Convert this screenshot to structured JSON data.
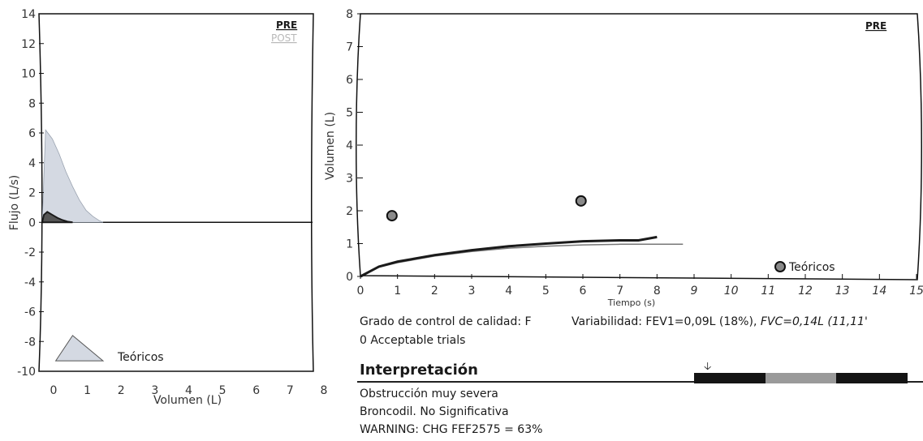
{
  "colors": {
    "pre": "#1a1a1a",
    "post": "#b8b8b8",
    "predicted_fill": "#d4d9e2",
    "axis": "#111111",
    "tick_text": "#333333",
    "predicted_marker": "#8a8a8a",
    "scale_dark": "#141414",
    "scale_light": "#9a9a9a"
  },
  "chart_data": [
    {
      "type": "area",
      "xlabel": "Volumen (L)",
      "ylabel": "Flujo (L/s)",
      "xlim": [
        0,
        8
      ],
      "ylim": [
        -10,
        14
      ],
      "xticks": [
        0,
        1,
        2,
        3,
        4,
        5,
        6,
        7,
        8
      ],
      "yticks": [
        14,
        12,
        10,
        8,
        6,
        4,
        2,
        0,
        -2,
        -4,
        -6,
        -8,
        -10
      ],
      "legend": [
        {
          "label": "PRE",
          "color": "#1a1a1a"
        },
        {
          "label": "POST",
          "color": "#b8b8b8"
        }
      ],
      "series": [
        {
          "name": "Teóricos",
          "x": [
            0.0,
            0.1,
            0.3,
            0.5,
            0.7,
            0.9,
            1.1,
            1.3,
            1.5,
            1.7,
            1.8
          ],
          "y": [
            0.0,
            6.2,
            5.6,
            4.6,
            3.4,
            2.4,
            1.5,
            0.8,
            0.4,
            0.1,
            0.0
          ]
        },
        {
          "name": "PRE",
          "x": [
            0.0,
            0.05,
            0.15,
            0.3,
            0.45,
            0.6,
            0.75,
            0.9
          ],
          "y": [
            0.0,
            0.5,
            0.7,
            0.5,
            0.3,
            0.15,
            0.05,
            0.0
          ]
        },
        {
          "name": "Teóricos inspiratoria",
          "x": [
            0.4,
            0.9,
            1.8
          ],
          "y": [
            -9.3,
            -7.6,
            -9.3
          ]
        }
      ],
      "annotations": [
        "Teóricos"
      ]
    },
    {
      "type": "line",
      "xlabel": "Tiempo (s)",
      "ylabel": "Volumen (L)",
      "xlim": [
        0,
        15
      ],
      "ylim": [
        0,
        8
      ],
      "xticks": [
        0,
        1,
        2,
        3,
        4,
        5,
        6,
        7,
        8,
        9,
        10,
        11,
        12,
        13,
        14,
        15
      ],
      "yticks": [
        0,
        1,
        2,
        3,
        4,
        5,
        6,
        7,
        8
      ],
      "legend": [
        {
          "label": "PRE",
          "color": "#1a1a1a"
        }
      ],
      "series": [
        {
          "name": "PRE",
          "x": [
            0,
            0.5,
            1,
            2,
            3,
            4,
            5,
            6,
            7,
            7.5,
            8.0
          ],
          "y": [
            0,
            0.3,
            0.45,
            0.65,
            0.8,
            0.92,
            1.0,
            1.07,
            1.1,
            1.1,
            1.2
          ]
        },
        {
          "name": "Teóricos",
          "x": [
            0,
            0.5,
            1,
            2,
            3,
            4,
            5,
            6,
            7,
            8.7
          ],
          "y": [
            0,
            0.28,
            0.42,
            0.62,
            0.76,
            0.86,
            0.92,
            0.96,
            0.98,
            0.98
          ]
        }
      ],
      "points": [
        {
          "name": "Teóricos",
          "x": 0.85,
          "y": 1.85
        },
        {
          "name": "Teóricos",
          "x": 5.95,
          "y": 2.3
        },
        {
          "name": "Teóricos",
          "x": 11.5,
          "y": 0.3
        }
      ],
      "annotations": [
        "Teóricos"
      ]
    }
  ],
  "quality": {
    "grade": "Grado de control de calidad: F",
    "trials": "0 Acceptable trials",
    "variability_prefix": "Variabilidad: FEV1=0,09L (18%), ",
    "variability_fvc": "FVC=0,14L (11,11'"
  },
  "interpretation": {
    "title": "Interpretación",
    "lines": [
      "Obstrucción muy severa",
      "Broncodil. No Significativa",
      "WARNING: CHG FEF2575 = 63%"
    ],
    "severity_scale": {
      "marker_position": 0.07,
      "segments": [
        "#141414",
        "#9a9a9a",
        "#141414"
      ]
    }
  }
}
